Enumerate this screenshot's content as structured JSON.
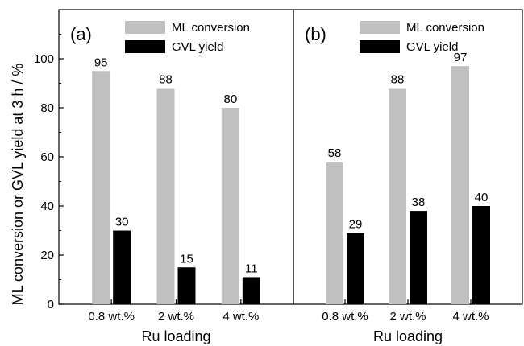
{
  "chart_data": [
    {
      "type": "bar",
      "panel_label": "(a)",
      "categories": [
        "0.8 wt.%",
        "2 wt.%",
        "4 wt.%"
      ],
      "series": [
        {
          "name": "ML conversion",
          "values": [
            95,
            88,
            80
          ],
          "color": "#c0c0c0"
        },
        {
          "name": "GVL yield",
          "values": [
            30,
            15,
            11
          ],
          "color": "#000000"
        }
      ],
      "data_labels": {
        "ML conversion": [
          "95",
          "88",
          "80"
        ],
        "GVL yield": [
          "30",
          "15",
          "11"
        ]
      },
      "xlabel": "Ru loading",
      "ylabel": "ML conversion or GVL yield at 3 h / %",
      "ylim": [
        0,
        120
      ],
      "yticks": [
        0,
        20,
        40,
        60,
        80,
        100
      ],
      "legend_placement": "top-right",
      "grid": false
    },
    {
      "type": "bar",
      "panel_label": "(b)",
      "categories": [
        "0.8 wt.%",
        "2 wt.%",
        "4 wt.%"
      ],
      "series": [
        {
          "name": "ML conversion",
          "values": [
            58,
            88,
            97
          ],
          "color": "#c0c0c0"
        },
        {
          "name": "GVL yield",
          "values": [
            29,
            38,
            40
          ],
          "color": "#000000"
        }
      ],
      "data_labels": {
        "ML conversion": [
          "58",
          "88",
          "97"
        ],
        "GVL yield": [
          "29",
          "38",
          "40"
        ]
      },
      "xlabel": "Ru loading",
      "ylabel": "",
      "ylim": [
        0,
        120
      ],
      "yticks": [
        0,
        20,
        40,
        60,
        80,
        100
      ],
      "legend_placement": "top-right",
      "grid": false
    }
  ]
}
